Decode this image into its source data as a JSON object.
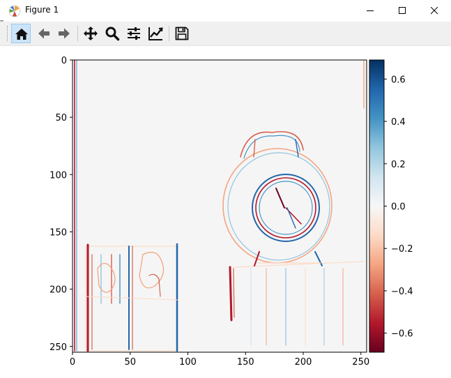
{
  "window": {
    "title": "Figure 1",
    "controls": [
      "minimize",
      "maximize",
      "close"
    ]
  },
  "toolbar": {
    "buttons": [
      {
        "name": "home",
        "icon": "home-icon",
        "active": true
      },
      {
        "name": "back",
        "icon": "arrow-left-icon"
      },
      {
        "name": "forward",
        "icon": "arrow-right-icon"
      },
      {
        "name": "pan",
        "icon": "move-icon"
      },
      {
        "name": "zoom",
        "icon": "magnifier-icon"
      },
      {
        "name": "subplots",
        "icon": "sliders-icon"
      },
      {
        "name": "edit-axes",
        "icon": "chart-line-icon"
      },
      {
        "name": "save",
        "icon": "floppy-disk-icon"
      }
    ]
  },
  "left_fragment": {
    "line1": "n",
    "line2": "i"
  },
  "chart_data": {
    "type": "heatmap",
    "description_of_content": "",
    "x_ticks": [
      0,
      50,
      100,
      150,
      200,
      250
    ],
    "y_ticks": [
      0,
      50,
      100,
      150,
      200,
      250
    ],
    "xlim": [
      0,
      255
    ],
    "ylim": [
      255,
      0
    ],
    "colormap": "RdBu",
    "colorbar": {
      "ticks": [
        0.6,
        0.4,
        0.2,
        0.0,
        -0.2,
        -0.4,
        -0.6
      ],
      "tick_labels": [
        "0.6",
        "0.4",
        "0.2",
        "0.0",
        "−0.2",
        "−0.4",
        "−0.6"
      ],
      "range": [
        -0.69,
        0.69
      ]
    },
    "grid": false
  }
}
